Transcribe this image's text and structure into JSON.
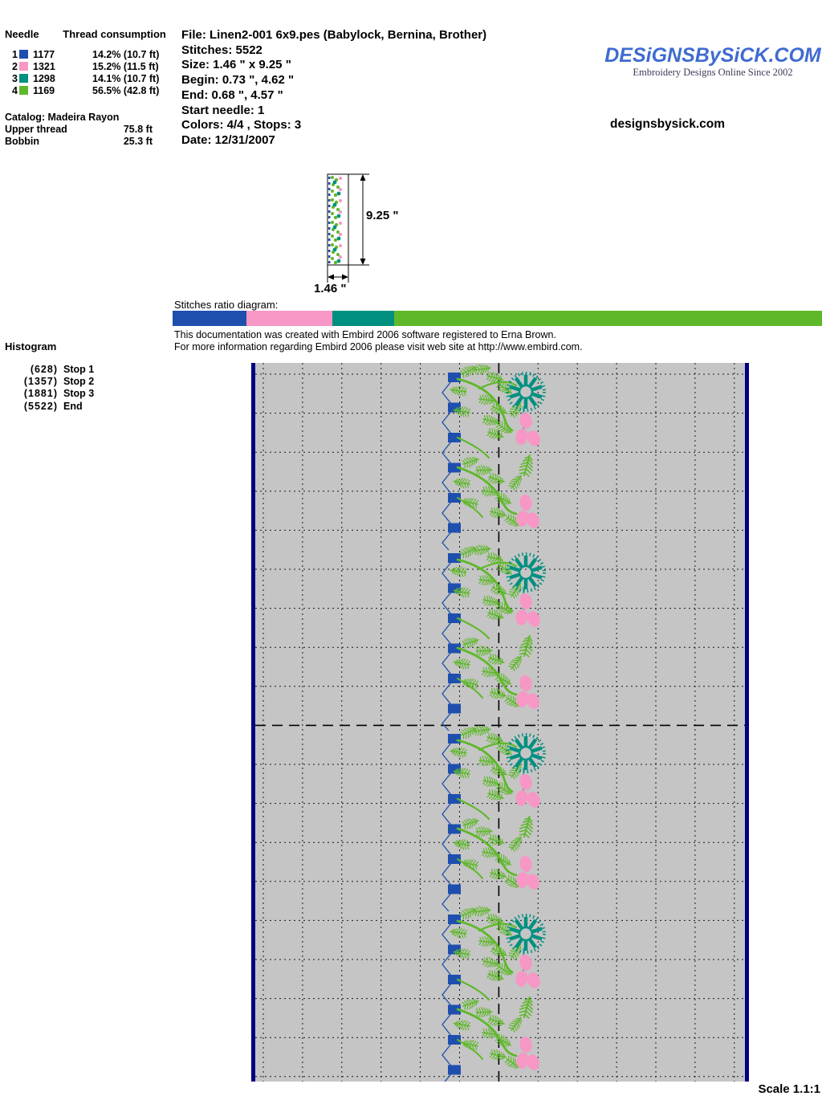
{
  "palette": {
    "navy": "#000080",
    "thread_blue": "#1f4fae",
    "thread_pink": "#f797c5",
    "thread_teal": "#009080",
    "thread_green": "#5fb82a",
    "canvas_gray": "#c5c5c5",
    "logo_blue": "#3f6bd0"
  },
  "needle_table": {
    "col_needle": "Needle",
    "col_consumption": "Thread consumption",
    "rows": [
      {
        "needle": "1",
        "color": "#1f4fae",
        "thread": "1177",
        "consumption": "14.2% (10.7 ft)"
      },
      {
        "needle": "2",
        "color": "#f797c5",
        "thread": "1321",
        "consumption": "15.2% (11.5 ft)"
      },
      {
        "needle": "3",
        "color": "#009080",
        "thread": "1298",
        "consumption": "14.1% (10.7 ft)"
      },
      {
        "needle": "4",
        "color": "#5fb82a",
        "thread": "1169",
        "consumption": "56.5% (42.8 ft)"
      }
    ],
    "catalog": "Catalog: Madeira Rayon",
    "upper_thread_label": "Upper thread",
    "upper_thread_value": "75.8 ft",
    "bobbin_label": "Bobbin",
    "bobbin_value": "25.3 ft"
  },
  "file_info": {
    "file": "File: Linen2-001 6x9.pes  (Babylock, Bernina, Brother)",
    "stitches": "Stitches: 5522",
    "size": "Size: 1.46 \" x 9.25 \"",
    "begin": "Begin: 0.73 \", 4.62 \"",
    "end": "End: 0.68 \", 4.57 \"",
    "start_needle": "Start needle: 1",
    "colors": "Colors: 4/4 , Stops: 3",
    "date": "Date: 12/31/2007"
  },
  "brand": {
    "logo": "DESiGNSBySiCK.COM",
    "tagline": "Embroidery Designs Online Since 2002",
    "site": "designsbysick.com"
  },
  "preview": {
    "height_label": "9.25 \"",
    "width_label": "1.46 \""
  },
  "ratio_diagram": {
    "label": "Stitches ratio diagram:",
    "segments": [
      {
        "name": "needle-1-blue",
        "color": "#1f4fae",
        "percent": 11.4
      },
      {
        "name": "needle-2-pink",
        "color": "#f797c5",
        "percent": 13.2
      },
      {
        "name": "needle-3-teal",
        "color": "#009080",
        "percent": 9.5
      },
      {
        "name": "needle-4-green",
        "color": "#5fb82a",
        "percent": 65.9
      }
    ]
  },
  "embird_note": {
    "line1": "This documentation was created with Embird 2006 software registered to Erna Brown.",
    "line2": "For more information regarding Embird 2006 please visit web site at http://www.embird.com."
  },
  "histogram": {
    "title": "Histogram",
    "entries": [
      {
        "count": "(628)",
        "label": "Stop 1"
      },
      {
        "count": "(1357)",
        "label": "Stop 2"
      },
      {
        "count": "(1881)",
        "label": "Stop 3"
      },
      {
        "count": "(5522)",
        "label": "End"
      }
    ]
  },
  "design_canvas": {
    "scale_label": "Scale 1.1:1"
  }
}
